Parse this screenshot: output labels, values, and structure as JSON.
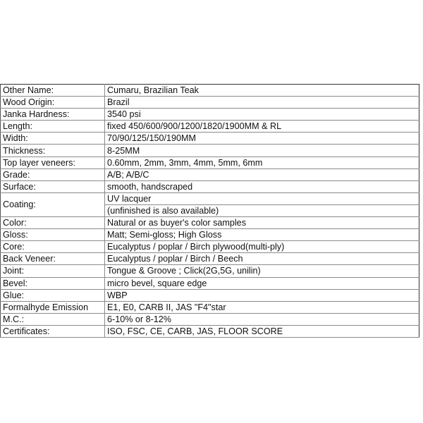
{
  "specs": [
    {
      "label": "Other Name:",
      "value": "Cumaru, Brazilian Teak"
    },
    {
      "label": "Wood Origin:",
      "value": "Brazil"
    },
    {
      "label": "Janka Hardness:",
      "value": "3540 psi"
    },
    {
      "label": "Length:",
      "value": "fixed 450/600/900/1200/1820/1900MM & RL"
    },
    {
      "label": "Width:",
      "value": "70/90/125/150/190MM"
    },
    {
      "label": "Thickness:",
      "value": "8-25MM"
    },
    {
      "label": "Top layer veneers:",
      "value": "0.60mm, 2mm, 3mm, 4mm, 5mm, 6mm"
    },
    {
      "label": "Grade:",
      "value": "A/B; A/B/C"
    },
    {
      "label": "Surface:",
      "value": "smooth, handscraped"
    },
    {
      "label": "Coating:",
      "value": "UV lacquer",
      "value2": "(unfinished is also available)"
    },
    {
      "label": "Color:",
      "value": "Natural or as buyer's color samples"
    },
    {
      "label": "Gloss:",
      "value": "Matt; Semi-gloss; High Gloss"
    },
    {
      "label": "Core:",
      "value": "Eucalyptus / poplar / Birch plywood(multi-ply)"
    },
    {
      "label": "Back Veneer:",
      "value": "Eucalyptus / poplar / Birch / Beech"
    },
    {
      "label": "Joint:",
      "value": "Tongue & Groove ; Click(2G,5G, unilin)"
    },
    {
      "label": "Bevel:",
      "value": "micro bevel, square edge"
    },
    {
      "label": "Glue:",
      "value": "WBP"
    },
    {
      "label": "Formalhyde Emission",
      "value": "E1, E0, CARB II, JAS \"F4\"star"
    },
    {
      "label": "M.C.:",
      "value": "6-10% or 8-12%"
    },
    {
      "label": "Certificates:",
      "value": "ISO, FSC, CE, CARB, JAS, FLOOR SCORE"
    }
  ]
}
